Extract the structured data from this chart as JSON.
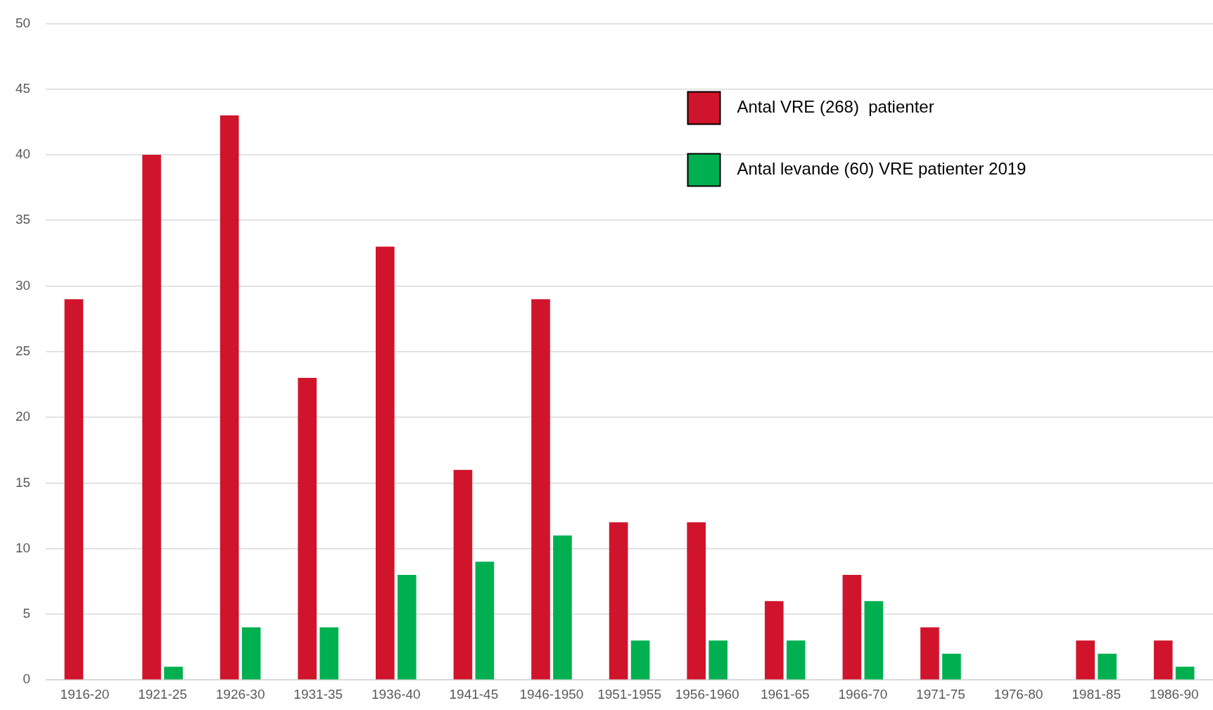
{
  "chart_data": {
    "type": "bar",
    "categories": [
      "1916-20",
      "1921-25",
      "1926-30",
      "1931-35",
      "1936-40",
      "1941-45",
      "1946-1950",
      "1951-1955",
      "1956-1960",
      "1961-65",
      "1966-70",
      "1971-75",
      "1976-80",
      "1981-85",
      "1986-90"
    ],
    "series": [
      {
        "name": "Antal VRE (268)  patienter",
        "color": "#d0142c",
        "values": [
          29,
          40,
          43,
          23,
          33,
          16,
          29,
          12,
          12,
          6,
          8,
          4,
          0,
          3,
          3
        ]
      },
      {
        "name": "Antal levande (60) VRE patienter 2019",
        "color": "#00b050",
        "values": [
          0,
          1,
          4,
          4,
          8,
          9,
          11,
          3,
          3,
          3,
          6,
          2,
          0,
          2,
          1
        ]
      }
    ],
    "ylim": [
      0,
      50
    ],
    "yticks": [
      0,
      5,
      10,
      15,
      20,
      25,
      30,
      35,
      40,
      45,
      50
    ],
    "grid": "y",
    "legend": "top right"
  }
}
